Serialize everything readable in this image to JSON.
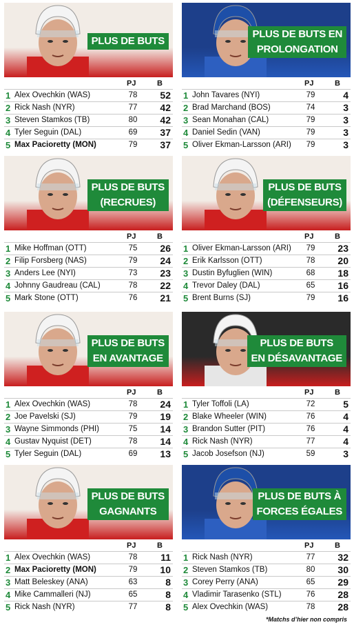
{
  "header": {
    "pj": "PJ",
    "b": "B"
  },
  "colors": {
    "accent": "#1f8a3a"
  },
  "panels": [
    {
      "title_lines": [
        "PLUS DE BUTS"
      ],
      "player_icon": "hockey-player-red-jersey",
      "rows": [
        {
          "rank": "1",
          "name": "Alex Ovechkin (WAS)",
          "gp": "78",
          "g": "52",
          "bold": false
        },
        {
          "rank": "2",
          "name": "Rick Nash (NYR)",
          "gp": "77",
          "g": "42",
          "bold": false
        },
        {
          "rank": "3",
          "name": "Steven Stamkos (TB)",
          "gp": "80",
          "g": "42",
          "bold": false
        },
        {
          "rank": "4",
          "name": "Tyler Seguin (DAL)",
          "gp": "69",
          "g": "37",
          "bold": false
        },
        {
          "rank": "5",
          "name": "Max Pacioretty (MON)",
          "gp": "79",
          "g": "37",
          "bold": true
        }
      ]
    },
    {
      "title_lines": [
        "PLUS DE BUTS EN",
        "PROLONGATION"
      ],
      "player_icon": "hockey-player-blue-jersey",
      "rows": [
        {
          "rank": "1",
          "name": "John Tavares (NYI)",
          "gp": "79",
          "g": "4",
          "bold": false
        },
        {
          "rank": "2",
          "name": "Brad Marchand (BOS)",
          "gp": "74",
          "g": "3",
          "bold": false
        },
        {
          "rank": "3",
          "name": "Sean Monahan (CAL)",
          "gp": "79",
          "g": "3",
          "bold": false
        },
        {
          "rank": "4",
          "name": "Daniel Sedin (VAN)",
          "gp": "79",
          "g": "3",
          "bold": false
        },
        {
          "rank": "5",
          "name": "Oliver Ekman-Larsson (ARI)",
          "gp": "79",
          "g": "3",
          "bold": false
        }
      ]
    },
    {
      "title_lines": [
        "PLUS DE BUTS",
        "(RECRUES)"
      ],
      "player_icon": "hockey-player-red-jersey",
      "rows": [
        {
          "rank": "1",
          "name": "Mike Hoffman (OTT)",
          "gp": "75",
          "g": "26",
          "bold": false
        },
        {
          "rank": "2",
          "name": "Filip Forsberg (NAS)",
          "gp": "79",
          "g": "24",
          "bold": false
        },
        {
          "rank": "3",
          "name": "Anders Lee (NYI)",
          "gp": "73",
          "g": "23",
          "bold": false
        },
        {
          "rank": "4",
          "name": "Johnny Gaudreau (CAL)",
          "gp": "78",
          "g": "22",
          "bold": false
        },
        {
          "rank": "5",
          "name": "Mark Stone (OTT)",
          "gp": "76",
          "g": "21",
          "bold": false
        }
      ]
    },
    {
      "title_lines": [
        "PLUS DE BUTS",
        "(DÉFENSEURS)"
      ],
      "player_icon": "hockey-player-red-jersey",
      "rows": [
        {
          "rank": "1",
          "name": "Oliver Ekman-Larsson (ARI)",
          "gp": "79",
          "g": "23",
          "bold": false
        },
        {
          "rank": "2",
          "name": "Erik Karlsson (OTT)",
          "gp": "78",
          "g": "20",
          "bold": false
        },
        {
          "rank": "3",
          "name": "Dustin Byfuglien (WIN)",
          "gp": "68",
          "g": "18",
          "bold": false
        },
        {
          "rank": "4",
          "name": "Trevor Daley (DAL)",
          "gp": "65",
          "g": "16",
          "bold": false
        },
        {
          "rank": "5",
          "name": "Brent Burns (SJ)",
          "gp": "79",
          "g": "16",
          "bold": false
        }
      ]
    },
    {
      "title_lines": [
        "PLUS DE BUTS",
        "EN AVANTAGE"
      ],
      "player_icon": "hockey-player-red-jersey",
      "rows": [
        {
          "rank": "1",
          "name": "Alex Ovechkin (WAS)",
          "gp": "78",
          "g": "24",
          "bold": false
        },
        {
          "rank": "2",
          "name": "Joe Pavelski (SJ)",
          "gp": "79",
          "g": "19",
          "bold": false
        },
        {
          "rank": "3",
          "name": "Wayne Simmonds (PHI)",
          "gp": "75",
          "g": "14",
          "bold": false
        },
        {
          "rank": "4",
          "name": "Gustav Nyquist (DET)",
          "gp": "78",
          "g": "14",
          "bold": false
        },
        {
          "rank": "5",
          "name": "Tyler Seguin (DAL)",
          "gp": "69",
          "g": "13",
          "bold": false
        }
      ]
    },
    {
      "title_lines": [
        "PLUS DE BUTS",
        "EN DÉSAVANTAGE"
      ],
      "player_icon": "hockey-player-black-jersey",
      "rows": [
        {
          "rank": "1",
          "name": "Tyler Toffoli (LA)",
          "gp": "72",
          "g": "5",
          "bold": false
        },
        {
          "rank": "2",
          "name": "Blake Wheeler (WIN)",
          "gp": "76",
          "g": "4",
          "bold": false
        },
        {
          "rank": "3",
          "name": "Brandon Sutter (PIT)",
          "gp": "76",
          "g": "4",
          "bold": false
        },
        {
          "rank": "4",
          "name": "Rick Nash (NYR)",
          "gp": "77",
          "g": "4",
          "bold": false
        },
        {
          "rank": "5",
          "name": "Jacob Josefson (NJ)",
          "gp": "59",
          "g": "3",
          "bold": false
        }
      ]
    },
    {
      "title_lines": [
        "PLUS DE BUTS",
        "GAGNANTS"
      ],
      "player_icon": "hockey-player-red-jersey",
      "rows": [
        {
          "rank": "1",
          "name": "Alex Ovechkin (WAS)",
          "gp": "78",
          "g": "11",
          "bold": false
        },
        {
          "rank": "2",
          "name": "Max Pacioretty (MON)",
          "gp": "79",
          "g": "10",
          "bold": true
        },
        {
          "rank": "3",
          "name": "Matt Beleskey (ANA)",
          "gp": "63",
          "g": "8",
          "bold": false
        },
        {
          "rank": "4",
          "name": "Mike Cammalleri (NJ)",
          "gp": "65",
          "g": "8",
          "bold": false
        },
        {
          "rank": "5",
          "name": "Rick Nash (NYR)",
          "gp": "77",
          "g": "8",
          "bold": false
        }
      ]
    },
    {
      "title_lines": [
        "PLUS DE BUTS À",
        "FORCES ÉGALES"
      ],
      "player_icon": "hockey-player-blue-jersey",
      "rows": [
        {
          "rank": "1",
          "name": "Rick Nash (NYR)",
          "gp": "77",
          "g": "32",
          "bold": false
        },
        {
          "rank": "2",
          "name": "Steven Stamkos (TB)",
          "gp": "80",
          "g": "30",
          "bold": false
        },
        {
          "rank": "3",
          "name": "Corey Perry (ANA)",
          "gp": "65",
          "g": "29",
          "bold": false
        },
        {
          "rank": "4",
          "name": "Vladimir Tarasenko (STL)",
          "gp": "76",
          "g": "28",
          "bold": false
        },
        {
          "rank": "5",
          "name": "Alex Ovechkin (WAS)",
          "gp": "78",
          "g": "28",
          "bold": false
        }
      ]
    }
  ],
  "footnote": "*Matchs d’hier non compris"
}
